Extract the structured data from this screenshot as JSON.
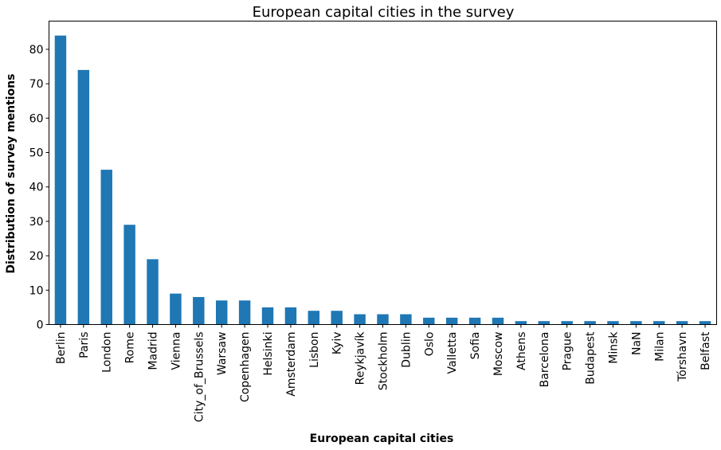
{
  "chart_data": {
    "type": "bar",
    "title": "European capital cities in the survey",
    "xlabel": "European capital cities",
    "ylabel": "Distribution of survey mentions",
    "categories": [
      "Berlin",
      "Paris",
      "London",
      "Rome",
      "Madrid",
      "Vienna",
      "City_of_Brussels",
      "Warsaw",
      "Copenhagen",
      "Helsinki",
      "Amsterdam",
      "Lisbon",
      "Kyiv",
      "Reykjavík",
      "Stockholm",
      "Dublin",
      "Oslo",
      "Valletta",
      "Sofia",
      "Moscow",
      "Athens",
      "Barcelona",
      "Prague",
      "Budapest",
      "Minsk",
      "NaN",
      "Milan",
      "Tórshavn",
      "Belfast"
    ],
    "values": [
      84,
      74,
      45,
      29,
      19,
      9,
      8,
      7,
      7,
      5,
      5,
      4,
      4,
      3,
      3,
      3,
      2,
      2,
      2,
      2,
      1,
      1,
      1,
      1,
      1,
      1,
      1,
      1,
      1
    ],
    "ylim": [
      0,
      88.2
    ],
    "yticks": [
      0,
      10,
      20,
      30,
      40,
      50,
      60,
      70,
      80
    ],
    "grid": false,
    "bar_color": "#1f77b4"
  }
}
